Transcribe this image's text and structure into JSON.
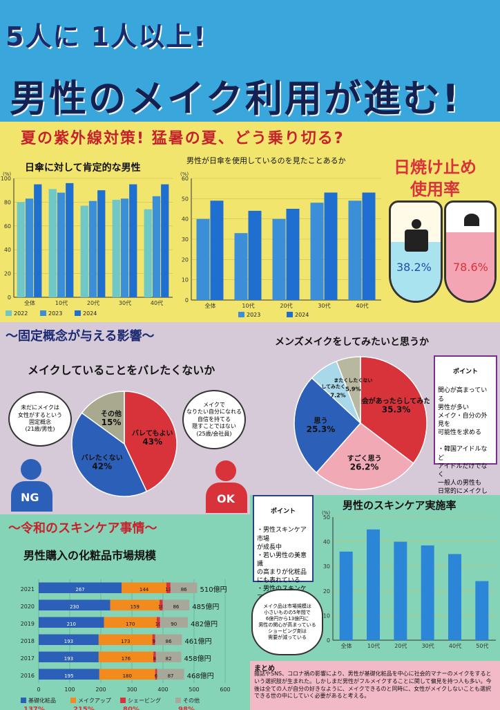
{
  "header": {
    "line1": "5人に 1人以上!",
    "line2": "男性のメイク利用が進む!"
  },
  "summer": {
    "heading": "夏の紫外線対策! 猛暑の夏、どう乗り切る?",
    "chart1": {
      "title": "日傘に対して肯定的な男性"
    },
    "chart2": {
      "title": "男性が日傘を使用しているのを見たことあるか"
    },
    "sunscreen": {
      "title_l1": "日焼け止め",
      "title_l2": "使用率",
      "left_pct": "38.2%",
      "right_pct": "78.6%"
    }
  },
  "stereo": {
    "heading": "〜固定概念が与える影響〜",
    "pie_title": "メイクしていることをバレたくないか",
    "bubble_left": "未だにメイクは\n女性がするという\n固定概念\n(21歳/男性)",
    "bubble_right": "メイクで\nなりたい自分になれる\n自信を持てる\n隠すことではない\n(25歳/会社員)",
    "badge_ng": "NG",
    "badge_ok": "OK"
  },
  "mens": {
    "heading": "メンズメイクをしてみたいと思うか",
    "point_label": "ポイント",
    "point_text": "関心が高まっている\n男性が多い\nメイク・自分の外見を\n可能性を求める\n\n・韓国アイドルなど\nアイドルだけでなく\n一般人の男性も\n日常的にメイクしている"
  },
  "reiwa": {
    "heading": "〜令和のスキンケア事情〜",
    "market_title": "男性購入の化粧品市場規模",
    "legend_growth": [
      "137%",
      "215%",
      "80%",
      "98%"
    ],
    "units": "億円"
  },
  "point2": {
    "label": "ポイント",
    "text": "・男性スキンケア市場\nが成長中\n・若い男性の美意識\nの高まりが化粧品\nにも表れている\n・男性のスキンケアが\n一般化すれば、さらに\n拡大が見込める"
  },
  "cloud_note": "メイク品は市場規模は\n小さいものの5年間で\n6億円から13億円に\n男性の関心が高まっている\nショービング剤は\n需要が減っている",
  "skincare_chart": {
    "title": "男性のスキンケア実施率"
  },
  "summary": {
    "label": "まとめ",
    "text": "雑誌やSNS、コロナ禍の影響により、男性が基礎化粧品を中心に社会的マナーのメイクをするという選択肢が生まれた。しかしまだ男性がフルメイクすることに関して偏見を持つ人も多い。今後は全ての人が自分の好きなように、メイクできるのと同時に、女性がメイクしないことも選択できる世の中にしていく必要があると考える。"
  },
  "chart_data": [
    {
      "type": "bar",
      "title": "日傘に対して肯定的な男性",
      "categories": [
        "全体",
        "10代",
        "20代",
        "30代",
        "40代"
      ],
      "series": [
        {
          "name": "2022",
          "values": [
            80,
            91,
            77,
            82,
            74
          ]
        },
        {
          "name": "2023",
          "values": [
            83,
            88,
            81,
            83,
            85
          ]
        },
        {
          "name": "2024",
          "values": [
            95,
            96,
            90,
            95,
            95
          ]
        }
      ],
      "ylim": [
        0,
        100
      ],
      "yticks": [
        0,
        20,
        40,
        60,
        80,
        100
      ],
      "ylabel": "(%)"
    },
    {
      "type": "bar",
      "title": "男性が日傘を使用しているのを見たことあるか",
      "categories": [
        "全体",
        "10代",
        "20代",
        "30代",
        "40代"
      ],
      "series": [
        {
          "name": "2023",
          "values": [
            40,
            33,
            40,
            48,
            49
          ]
        },
        {
          "name": "2024",
          "values": [
            49,
            44,
            45,
            53,
            53
          ]
        }
      ],
      "ylim": [
        0,
        60
      ],
      "yticks": [
        0,
        10,
        20,
        30,
        40,
        50,
        60
      ],
      "ylabel": "(%)"
    },
    {
      "type": "pie",
      "title": "メイクしていることをバレたくないか",
      "slices": [
        {
          "label": "バレてもよい",
          "value": 43,
          "pct": "43%",
          "color": "#d8323a"
        },
        {
          "label": "バレたくない",
          "value": 42,
          "pct": "42%",
          "color": "#2c5fb8"
        },
        {
          "label": "その他",
          "value": 15,
          "pct": "15%",
          "color": "#a9a98f"
        }
      ]
    },
    {
      "type": "pie",
      "title": "メンズメイクをしてみたいと思うか",
      "slices": [
        {
          "label": "機会があったらしてみたい",
          "value": 35.3,
          "pct": "35.3%",
          "color": "#d8323a"
        },
        {
          "label": "すごく思う",
          "value": 26.2,
          "pct": "26.2%",
          "color": "#f2a9b6"
        },
        {
          "label": "思う",
          "value": 25.3,
          "pct": "25.3%",
          "color": "#2c5fb8"
        },
        {
          "label": "してみたくない",
          "value": 7.2,
          "pct": "7.2%",
          "color": "#a9d8ea"
        },
        {
          "label": "またくしたくない",
          "value": 5.9,
          "pct": "5.9%",
          "color": "#b8b8a0"
        }
      ]
    },
    {
      "type": "bar",
      "title": "男性購入の化粧品市場規模",
      "orientation": "horizontal-stacked",
      "categories": [
        "2021",
        "2020",
        "2019",
        "2018",
        "2017",
        "2016"
      ],
      "series": [
        {
          "name": "基礎化粧品",
          "values": [
            267,
            230,
            210,
            193,
            193,
            195
          ]
        },
        {
          "name": "メイクアップ",
          "values": [
            144,
            159,
            170,
            173,
            176,
            180
          ]
        },
        {
          "name": "シェービング",
          "values": [
            13,
            10,
            10,
            9,
            8,
            6
          ]
        },
        {
          "name": "その他",
          "values": [
            86,
            86,
            90,
            86,
            82,
            87
          ]
        }
      ],
      "totals": [
        "510億円",
        "485億円",
        "482億円",
        "461億円",
        "458億円",
        "468億円"
      ],
      "xlim": [
        0,
        600
      ],
      "xticks": [
        0,
        100,
        200,
        300,
        400,
        500,
        600
      ]
    },
    {
      "type": "bar",
      "title": "男性のスキンケア実施率",
      "categories": [
        "全体",
        "10代",
        "20代",
        "30代",
        "40代",
        "50代"
      ],
      "values": [
        36,
        45,
        40,
        38.5,
        35,
        24
      ],
      "ylim": [
        0,
        50
      ],
      "yticks": [
        0,
        10,
        20,
        30,
        40,
        50
      ],
      "ylabel": "(%)"
    }
  ],
  "colors": {
    "y2022": "#6fc8c6",
    "y2023": "#3a8fd8",
    "y2024": "#1f6fd1",
    "base": "#2c5fb8",
    "makeup": "#f28a1e",
    "shave": "#d8323a",
    "other": "#a8a89a"
  }
}
